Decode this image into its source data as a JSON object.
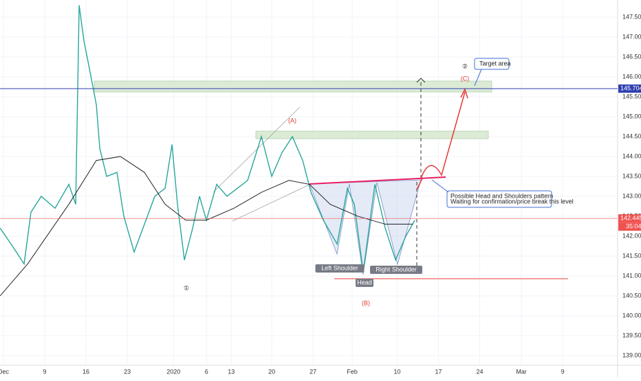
{
  "chart_data": {
    "type": "line",
    "xlim": [
      -0.42,
      74.4
    ],
    "ylim": [
      138.62,
      147.93
    ],
    "xticks": [
      {
        "value": 0,
        "label": "Dec"
      },
      {
        "value": 5,
        "label": "9"
      },
      {
        "value": 10,
        "label": "16"
      },
      {
        "value": 15,
        "label": "23"
      },
      {
        "value": 20.6,
        "label": "2020"
      },
      {
        "value": 24.6,
        "label": "6"
      },
      {
        "value": 27.6,
        "label": "13"
      },
      {
        "value": 32.5,
        "label": "20"
      },
      {
        "value": 37.5,
        "label": "27"
      },
      {
        "value": 42.25,
        "label": "Feb"
      },
      {
        "value": 47.7,
        "label": "10"
      },
      {
        "value": 52.7,
        "label": "17"
      },
      {
        "value": 57.7,
        "label": "24"
      },
      {
        "value": 62.75,
        "label": "Mar"
      },
      {
        "value": 67.75,
        "label": "9"
      }
    ],
    "yticks": [
      {
        "value": 139.0,
        "label": "139.000"
      },
      {
        "value": 139.5,
        "label": "139.500"
      },
      {
        "value": 140.0,
        "label": "140.000"
      },
      {
        "value": 140.5,
        "label": "140.500"
      },
      {
        "value": 141.0,
        "label": "141.000"
      },
      {
        "value": 141.5,
        "label": "141.500"
      },
      {
        "value": 142.0,
        "label": "142.000"
      },
      {
        "value": 142.5,
        "label": "142.500"
      },
      {
        "value": 143.0,
        "label": "143.000"
      },
      {
        "value": 143.5,
        "label": "143.500"
      },
      {
        "value": 144.0,
        "label": "144.000"
      },
      {
        "value": 144.5,
        "label": "144.500"
      },
      {
        "value": 145.0,
        "label": "145.000"
      },
      {
        "value": 145.5,
        "label": "145.500"
      },
      {
        "value": 146.0,
        "label": "146.000"
      },
      {
        "value": 146.5,
        "label": "146.500"
      },
      {
        "value": 147.0,
        "label": "147.000"
      },
      {
        "value": 147.5,
        "label": "147.500"
      }
    ],
    "series": [
      {
        "color": "#26a69a",
        "x": [
          -0.4,
          1.25,
          2.5,
          3.33,
          4.58,
          6.25,
          7.92,
          8.75,
          9.17,
          9.75,
          10.42,
          11.25,
          11.67,
          12.5,
          13.75,
          14.58,
          15.83,
          17.08,
          18.33,
          19.58,
          20.42,
          21.08,
          21.92,
          22.92,
          23.75,
          24.58,
          25.83,
          27.08,
          28.33,
          29.58,
          31.25,
          32.5,
          33.75,
          35,
          36.25,
          37.25,
          38.75,
          40.42,
          41.67,
          42.5,
          43.58,
          45,
          46.25,
          47.5,
          48.75,
          49.83
        ],
        "values": [
          142.2,
          141.7,
          141.3,
          142.6,
          143.0,
          142.7,
          143.3,
          142.8,
          147.8,
          146.9,
          146.2,
          145.3,
          144.2,
          143.5,
          143.6,
          142.5,
          141.6,
          142.3,
          143.0,
          143.2,
          144.3,
          142.8,
          141.4,
          142.2,
          143.0,
          142.4,
          143.3,
          143.0,
          143.2,
          143.4,
          144.5,
          143.5,
          144.1,
          144.5,
          143.9,
          143.1,
          142.4,
          141.8,
          143.2,
          142.8,
          141.1,
          143.3,
          142.2,
          141.4,
          142.0,
          142.4
        ]
      },
      {
        "color": "#222222",
        "x": [
          -0.4,
          2.92,
          7.92,
          11.25,
          14.17,
          17.08,
          19.58,
          22.08,
          24.58,
          27.92,
          31.25,
          34.58,
          37.08,
          39.58,
          42.92,
          46.25,
          49.58
        ],
        "values": [
          140.5,
          141.3,
          142.8,
          143.9,
          144.0,
          143.6,
          142.8,
          142.4,
          142.4,
          142.7,
          143.1,
          143.4,
          143.3,
          142.8,
          142.5,
          142.3,
          142.3
        ]
      }
    ],
    "levels": [
      {
        "value": 145.704,
        "label": "145.704",
        "color": "#2f3fb0"
      },
      {
        "value": 142.445,
        "label": "142.445",
        "color": "#ef5350"
      }
    ],
    "countdown": "35:04",
    "annotations": [
      "(A)",
      "(B)",
      "(C)",
      "①",
      "②",
      "Target area",
      "Possible Head and Shoulders pattern",
      "Waiting for confirmation/price break this level",
      "Left Shoulder",
      "Head",
      "Right Shoulder"
    ]
  }
}
